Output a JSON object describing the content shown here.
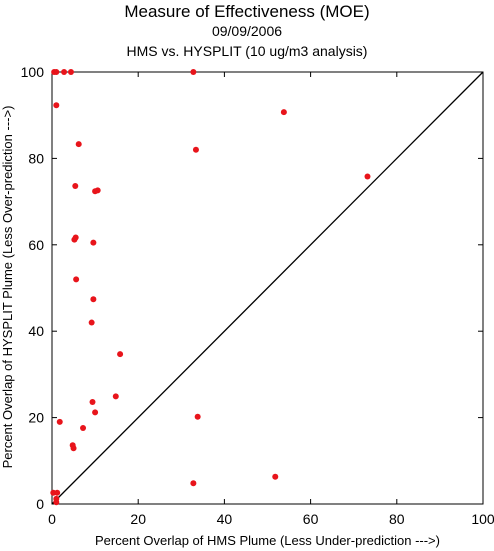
{
  "titles": {
    "main": "Measure of Effectiveness (MOE)",
    "date": "09/09/2006",
    "subtitle": "HMS vs. HYSPLIT  (10 ug/m3 analysis)"
  },
  "chart_data": {
    "type": "scatter",
    "title": "Measure of Effectiveness (MOE)",
    "xlabel": "Percent Overlap of HMS Plume (Less Under-prediction --->)",
    "ylabel": "Percent Overlap of HYSPLIT Plume (Less Over-prediction --->)",
    "xlim": [
      0,
      100
    ],
    "ylim": [
      0,
      100
    ],
    "xticks": [
      0,
      20,
      40,
      60,
      80,
      100
    ],
    "yticks": [
      0,
      20,
      40,
      60,
      80,
      100
    ],
    "grid": false,
    "reference_line": "y = x",
    "point_color": "#e8141b",
    "points": [
      {
        "x": 0.5,
        "y": 100
      },
      {
        "x": 1.0,
        "y": 100
      },
      {
        "x": 2.8,
        "y": 100
      },
      {
        "x": 4.4,
        "y": 100
      },
      {
        "x": 32.8,
        "y": 100
      },
      {
        "x": 1.0,
        "y": 92.3
      },
      {
        "x": 53.8,
        "y": 90.7
      },
      {
        "x": 6.2,
        "y": 83.3
      },
      {
        "x": 33.4,
        "y": 82.0
      },
      {
        "x": 73.2,
        "y": 75.8
      },
      {
        "x": 5.4,
        "y": 73.6
      },
      {
        "x": 10.0,
        "y": 72.4
      },
      {
        "x": 10.6,
        "y": 72.6
      },
      {
        "x": 5.5,
        "y": 61.7
      },
      {
        "x": 5.2,
        "y": 61.2
      },
      {
        "x": 9.6,
        "y": 60.5
      },
      {
        "x": 5.6,
        "y": 52.0
      },
      {
        "x": 9.6,
        "y": 47.4
      },
      {
        "x": 9.2,
        "y": 42.0
      },
      {
        "x": 15.8,
        "y": 34.7
      },
      {
        "x": 14.8,
        "y": 24.9
      },
      {
        "x": 9.4,
        "y": 23.6
      },
      {
        "x": 10.0,
        "y": 21.2
      },
      {
        "x": 33.8,
        "y": 20.2
      },
      {
        "x": 1.8,
        "y": 19.0
      },
      {
        "x": 7.2,
        "y": 17.6
      },
      {
        "x": 4.8,
        "y": 13.6
      },
      {
        "x": 5.0,
        "y": 12.9
      },
      {
        "x": 51.8,
        "y": 6.3
      },
      {
        "x": 32.8,
        "y": 4.8
      },
      {
        "x": 0.3,
        "y": 2.6
      },
      {
        "x": 1.2,
        "y": 2.6
      },
      {
        "x": 1.0,
        "y": 1.2
      },
      {
        "x": 1.0,
        "y": 0.4
      }
    ]
  }
}
